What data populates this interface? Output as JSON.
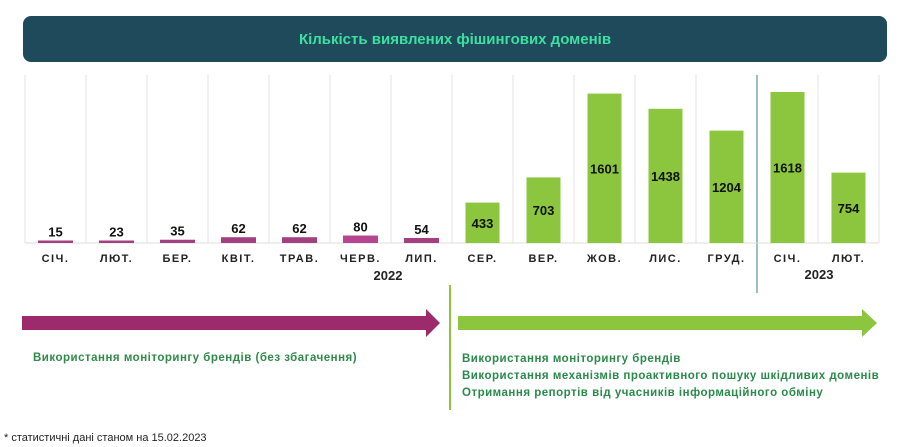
{
  "chart_data": {
    "type": "bar",
    "title": "Кількість виявлених фішингових доменів",
    "categories": [
      "СІЧ.",
      "ЛЮТ.",
      "БЕР.",
      "КВІТ.",
      "ТРАВ.",
      "ЧЕРВ.",
      "ЛИП.",
      "СЕР.",
      "ВЕР.",
      "ЖОВ.",
      "ЛИС.",
      "ГРУД.",
      "СІЧ.",
      "ЛЮТ."
    ],
    "values": [
      15,
      23,
      35,
      62,
      62,
      80,
      54,
      433,
      703,
      1601,
      1438,
      1204,
      1618,
      754
    ],
    "year_groups": [
      {
        "label": "2022",
        "start": 0,
        "end": 11
      },
      {
        "label": "2023",
        "start": 12,
        "end": 13
      }
    ],
    "period_colors": [
      "#a3407f",
      "#a3407f",
      "#a3407f",
      "#a3407f",
      "#a3407f",
      "#b8458f",
      "#a3407f",
      "#8cc63f",
      "#8cc63f",
      "#8cc63f",
      "#8cc63f",
      "#8cc63f",
      "#8cc63f",
      "#8cc63f"
    ],
    "grid": "vertical",
    "data_labels": true
  },
  "phases": [
    {
      "color": "#9c2a6c",
      "items": [
        "Використання моніторингу брендів (без збагачення)"
      ]
    },
    {
      "color": "#8cc63f",
      "items": [
        "Використання моніторингу брендів",
        "Використання механізмів проактивного пошуку шкідливих доменів",
        "Отримання репортів від учасників інформаційного обміну"
      ]
    }
  ],
  "footnote": "* статистичні дані станом на 15.02.2023",
  "colors": {
    "title_bg": "#1e4a5c",
    "title_text": "#3ee0a0",
    "purple": "#a3407f",
    "green": "#8cc63f"
  }
}
